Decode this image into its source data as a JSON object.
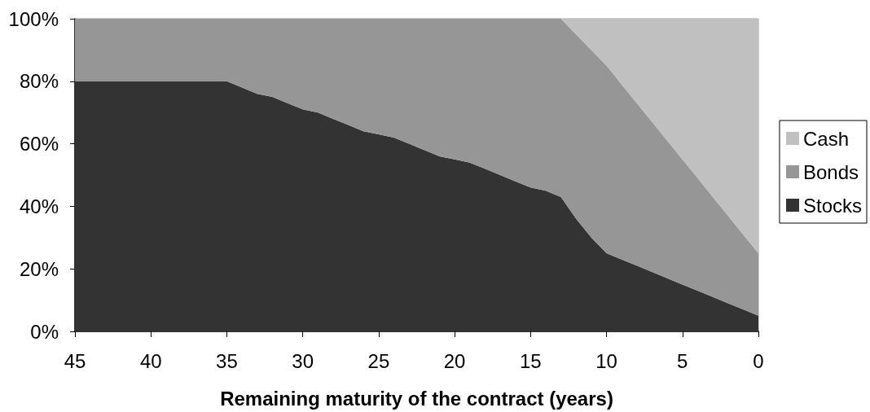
{
  "chart_data": {
    "type": "area",
    "stacked": true,
    "xlabel": "Remaining maturity of the contract (years)",
    "x": [
      45,
      35,
      34,
      33,
      32,
      31,
      30,
      29,
      28,
      27,
      26,
      25,
      24,
      23,
      22,
      21,
      20,
      19,
      18,
      17,
      16,
      15,
      14,
      13,
      12,
      11,
      10,
      9,
      8,
      7,
      6,
      5,
      4,
      3,
      2,
      1,
      0
    ],
    "series": [
      {
        "name": "Stocks",
        "color": "#333333",
        "values": [
          80,
          80,
          78,
          76,
          75,
          73,
          71,
          70,
          68,
          66,
          64,
          63,
          62,
          60,
          58,
          56,
          55,
          54,
          52,
          50,
          48,
          46,
          45,
          43,
          36,
          30,
          25,
          23,
          21,
          19,
          17,
          15,
          13,
          11,
          9,
          7,
          5
        ]
      },
      {
        "name": "Bonds",
        "color": "#969696",
        "values": [
          20,
          20,
          22,
          24,
          25,
          27,
          29,
          30,
          32,
          34,
          36,
          37,
          38,
          40,
          42,
          44,
          45,
          46,
          48,
          50,
          52,
          54,
          55,
          57,
          59,
          60,
          60,
          56,
          52,
          48,
          44,
          40,
          36,
          32,
          28,
          24,
          20
        ]
      },
      {
        "name": "Cash",
        "color": "#c0c0c0",
        "values": [
          0,
          0,
          0,
          0,
          0,
          0,
          0,
          0,
          0,
          0,
          0,
          0,
          0,
          0,
          0,
          0,
          0,
          0,
          0,
          0,
          0,
          0,
          0,
          0,
          5,
          10,
          15,
          21,
          27,
          33,
          39,
          45,
          51,
          57,
          63,
          69,
          75
        ]
      }
    ],
    "xlim": [
      45,
      0
    ],
    "xticks": [
      45,
      40,
      35,
      30,
      25,
      20,
      15,
      10,
      5,
      0
    ],
    "ylim": [
      0,
      100
    ],
    "yticks": [
      {
        "value": 0,
        "label": "0%"
      },
      {
        "value": 20,
        "label": "20%"
      },
      {
        "value": 40,
        "label": "40%"
      },
      {
        "value": 60,
        "label": "60%"
      },
      {
        "value": 80,
        "label": "80%"
      },
      {
        "value": 100,
        "label": "100%"
      }
    ],
    "legend": "right"
  }
}
